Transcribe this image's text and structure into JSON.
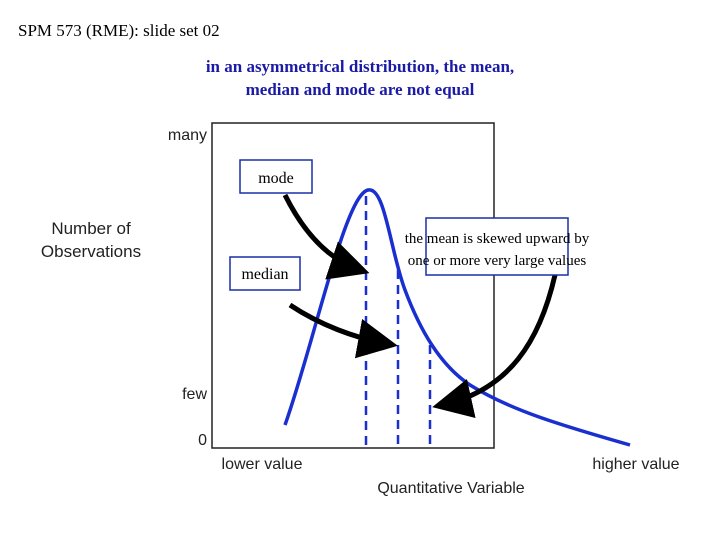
{
  "header": {
    "text": "SPM 573 (RME): slide set 02"
  },
  "title": {
    "lines": [
      "in an asymmetrical distribution, the mean,",
      "median and mode are not equal"
    ]
  },
  "y_axis": {
    "title_lines": [
      "Number of",
      "Observations"
    ],
    "labels": [
      "many",
      "few",
      "0"
    ]
  },
  "x_axis": {
    "title": "Quantitative Variable",
    "labels": [
      "lower value",
      "higher value"
    ]
  },
  "callouts": {
    "mode": "mode",
    "median": "median",
    "mean": [
      "the mean is skewed upward by",
      "one or more very large values"
    ]
  }
}
